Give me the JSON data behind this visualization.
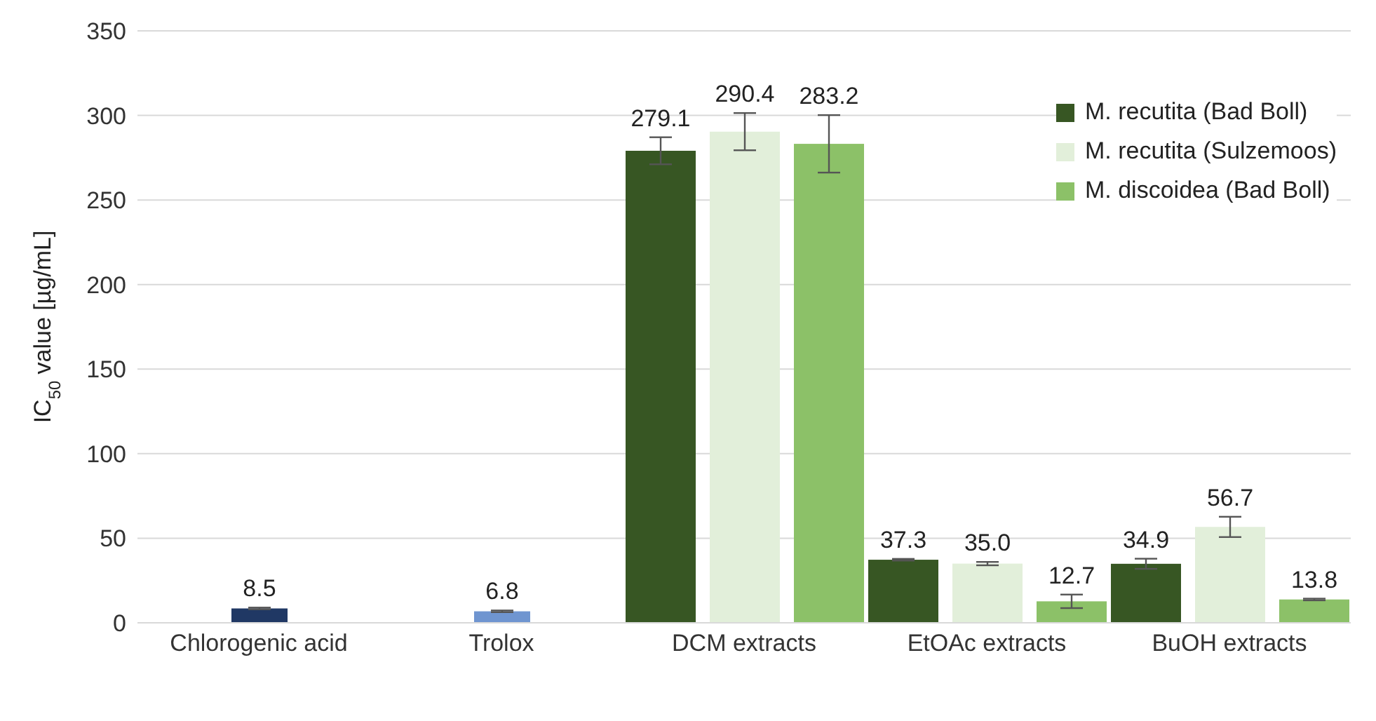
{
  "chart_data": {
    "type": "bar",
    "ylabel": "IC$_{50}$ value [µg/mL]",
    "categories": [
      "Chlorogenic acid",
      "Trolox",
      "DCM extracts",
      "EtOAc extracts",
      "BuOH extracts"
    ],
    "series": [
      {
        "name": "M. recutita (Bad Boll)",
        "color": "#375623",
        "values": [
          null,
          null,
          279.1,
          37.3,
          34.9
        ],
        "errors": [
          null,
          null,
          8,
          0.5,
          3
        ],
        "value_labels": [
          null,
          null,
          "279.1",
          "37.3",
          "34.9"
        ]
      },
      {
        "name": "M. recutita (Sulzemoos)",
        "color": "#e2efda",
        "values": [
          null,
          null,
          290.4,
          35.0,
          56.7
        ],
        "errors": [
          null,
          null,
          11,
          1,
          6
        ],
        "value_labels": [
          null,
          null,
          "290.4",
          "35.0",
          "56.7"
        ]
      },
      {
        "name": "M. discoidea (Bad Boll)",
        "color": "#8cc168",
        "values": [
          null,
          null,
          283.2,
          12.7,
          13.8
        ],
        "errors": [
          null,
          null,
          17,
          4,
          0.5
        ],
        "value_labels": [
          null,
          null,
          "283.2",
          "12.7",
          "13.8"
        ]
      },
      {
        "colors": [
          "#203864",
          "#6f95d0",
          null,
          null,
          null
        ],
        "values": [
          8.5,
          6.8,
          null,
          null,
          null
        ],
        "errors": [
          0.5,
          0.5,
          null,
          null,
          null
        ],
        "value_labels": [
          "8.5",
          "6.8",
          null,
          null,
          null
        ]
      }
    ],
    "ylim": [
      0,
      350
    ],
    "yticks": [
      0,
      50,
      100,
      150,
      200,
      250,
      300,
      350
    ],
    "grid": "y",
    "legend": "top right"
  }
}
